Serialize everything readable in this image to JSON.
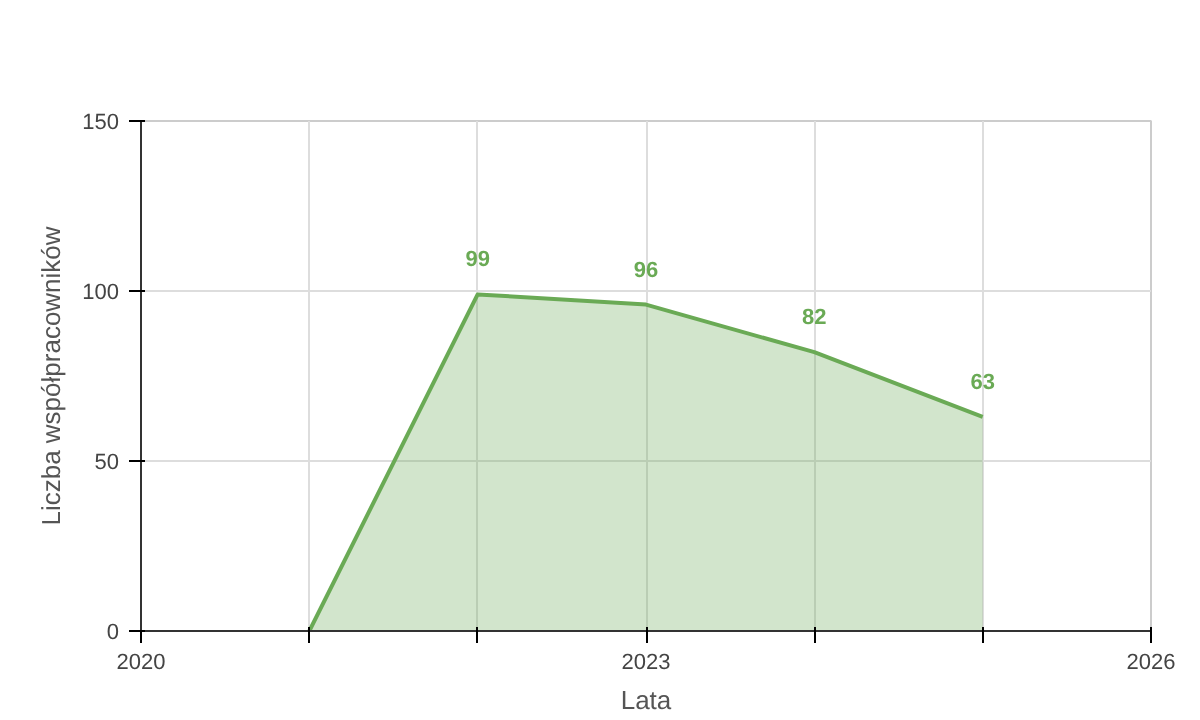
{
  "chart_data": {
    "type": "area",
    "xlabel": "Lata",
    "ylabel": "Liczba współpracowników",
    "x": [
      2021,
      2022,
      2023,
      2024,
      2025
    ],
    "series": [
      {
        "color": "#6aaa55",
        "values": [
          0,
          99,
          96,
          82,
          63
        ]
      }
    ],
    "value_labels": [
      null,
      "99",
      "96",
      "82",
      "63"
    ],
    "xlim": [
      2020,
      2026
    ],
    "xticks": [
      2020,
      {
        "value": 2021,
        "label": null
      },
      {
        "value": 2022,
        "label": null
      },
      2023,
      {
        "value": 2024,
        "label": null
      },
      {
        "value": 2025,
        "label": null
      },
      2026
    ],
    "ylim": [
      0,
      150
    ],
    "yticks": [
      0,
      50,
      100,
      150
    ],
    "grid": true
  }
}
